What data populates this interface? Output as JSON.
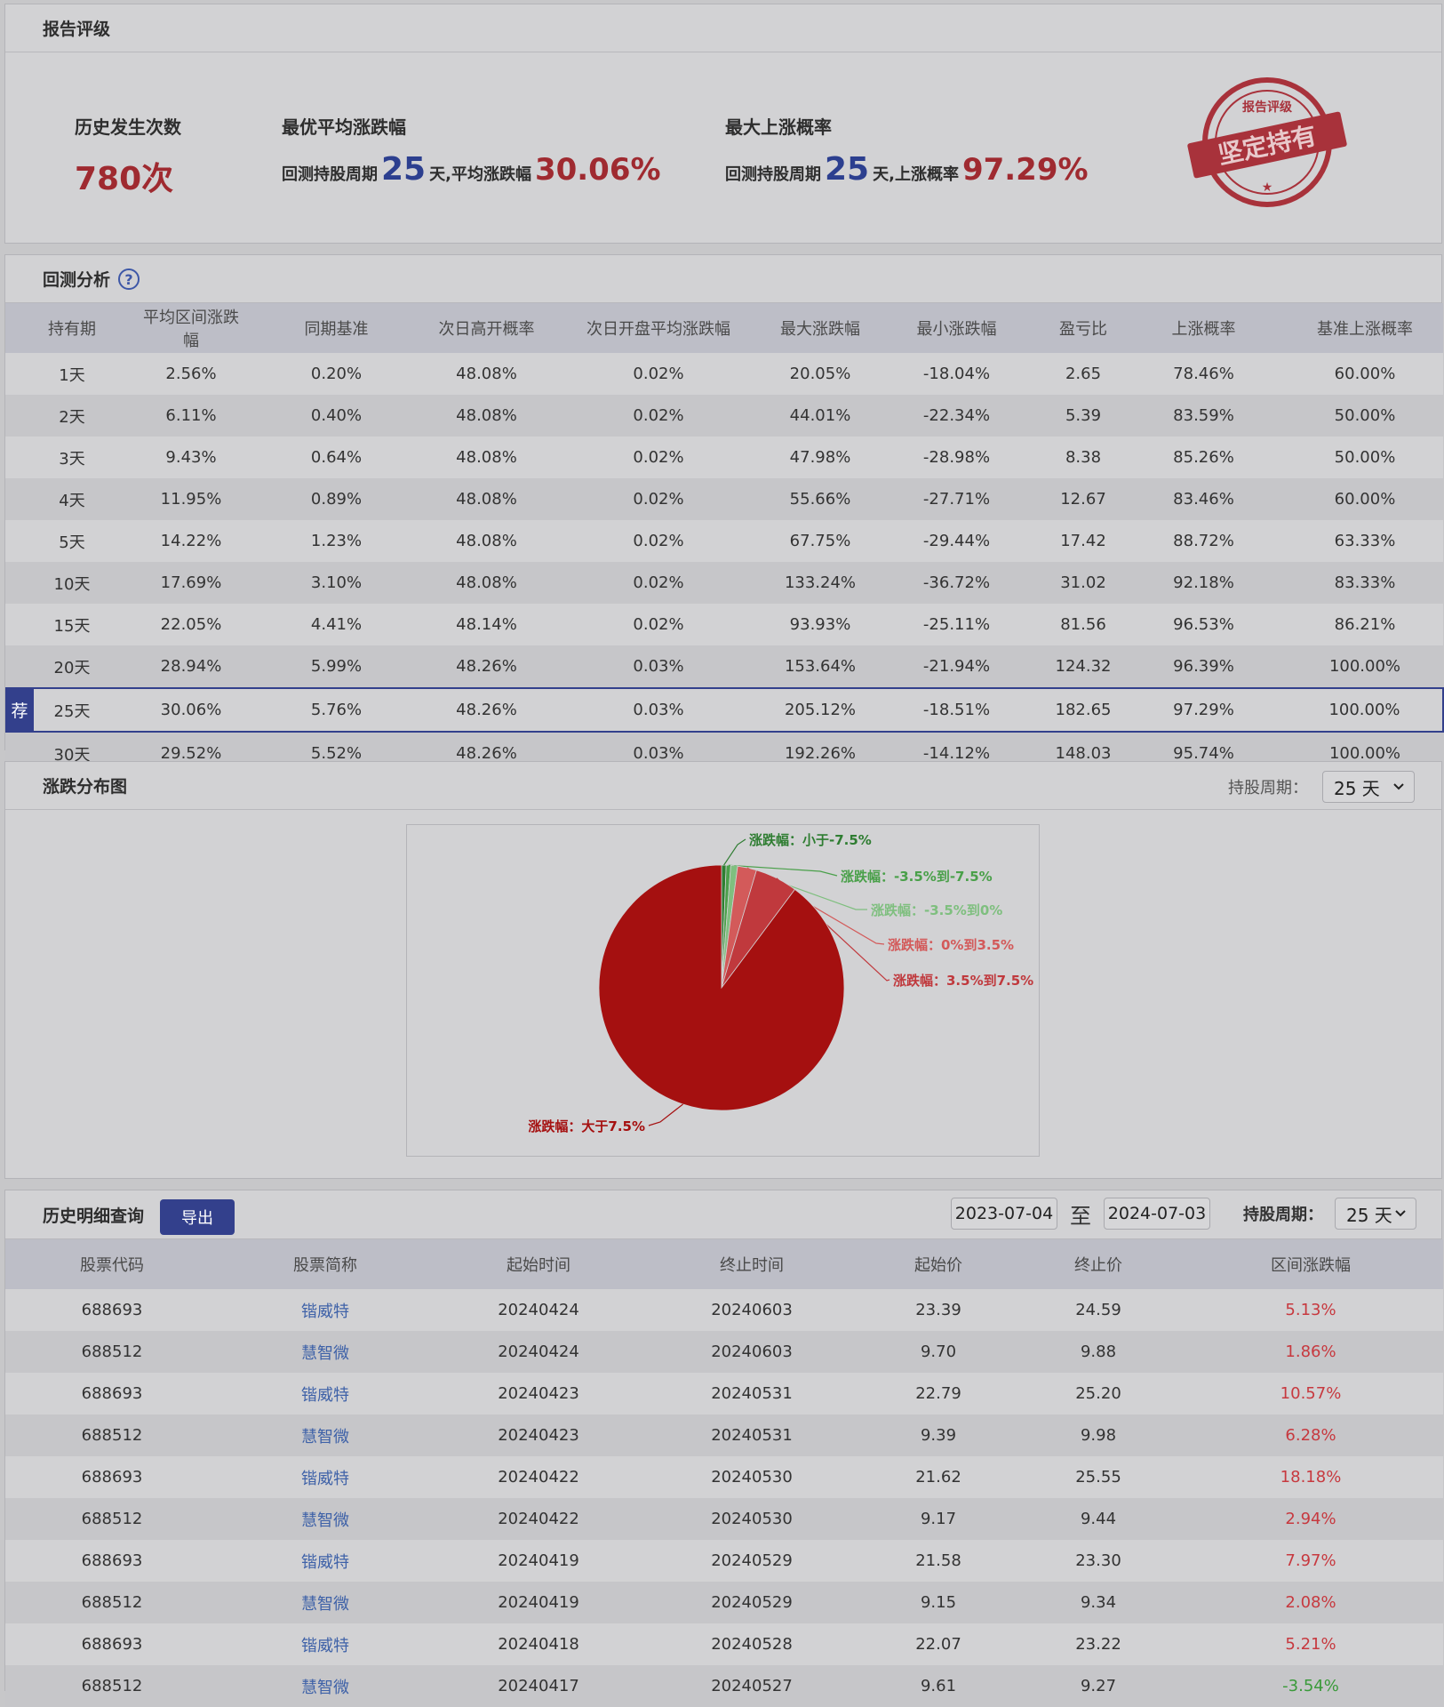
{
  "report": {
    "title": "报告评级",
    "count_label": "历史发生次数",
    "count_value": "780次",
    "best_avg_label": "最优平均涨跌幅",
    "best_avg_prefix": "回测持股周期",
    "best_avg_days": "25",
    "best_avg_mid": "天,平均涨跌幅",
    "best_avg_value": "30.06%",
    "max_up_label": "最大上涨概率",
    "max_up_prefix": "回测持股周期",
    "max_up_days": "25",
    "max_up_mid": "天,上涨概率",
    "max_up_value": "97.29%",
    "stamp_top": "报告评级",
    "stamp_text": "坚定持有"
  },
  "backtest": {
    "title": "回测分析",
    "help_icon": "question-circle-icon",
    "recommend_badge": "荐",
    "columns": [
      "持有期",
      "平均区间涨跌幅",
      "同期基准",
      "次日高开概率",
      "次日开盘平均涨跌幅",
      "最大涨跌幅",
      "最小涨跌幅",
      "盈亏比",
      "上涨概率",
      "基准上涨概率"
    ],
    "rows": [
      [
        "1天",
        "2.56%",
        "0.20%",
        "48.08%",
        "0.02%",
        "20.05%",
        "-18.04%",
        "2.65",
        "78.46%",
        "60.00%"
      ],
      [
        "2天",
        "6.11%",
        "0.40%",
        "48.08%",
        "0.02%",
        "44.01%",
        "-22.34%",
        "5.39",
        "83.59%",
        "50.00%"
      ],
      [
        "3天",
        "9.43%",
        "0.64%",
        "48.08%",
        "0.02%",
        "47.98%",
        "-28.98%",
        "8.38",
        "85.26%",
        "50.00%"
      ],
      [
        "4天",
        "11.95%",
        "0.89%",
        "48.08%",
        "0.02%",
        "55.66%",
        "-27.71%",
        "12.67",
        "83.46%",
        "60.00%"
      ],
      [
        "5天",
        "14.22%",
        "1.23%",
        "48.08%",
        "0.02%",
        "67.75%",
        "-29.44%",
        "17.42",
        "88.72%",
        "63.33%"
      ],
      [
        "10天",
        "17.69%",
        "3.10%",
        "48.08%",
        "0.02%",
        "133.24%",
        "-36.72%",
        "31.02",
        "92.18%",
        "83.33%"
      ],
      [
        "15天",
        "22.05%",
        "4.41%",
        "48.14%",
        "0.02%",
        "93.93%",
        "-25.11%",
        "81.56",
        "96.53%",
        "86.21%"
      ],
      [
        "20天",
        "28.94%",
        "5.99%",
        "48.26%",
        "0.03%",
        "153.64%",
        "-21.94%",
        "124.32",
        "96.39%",
        "100.00%"
      ],
      [
        "25天",
        "30.06%",
        "5.76%",
        "48.26%",
        "0.03%",
        "205.12%",
        "-18.51%",
        "182.65",
        "97.29%",
        "100.00%"
      ],
      [
        "30天",
        "29.52%",
        "5.52%",
        "48.26%",
        "0.03%",
        "192.26%",
        "-14.12%",
        "148.03",
        "95.74%",
        "100.00%"
      ]
    ],
    "recommended_index": 8
  },
  "distribution": {
    "title": "涨跌分布图",
    "period_label": "持股周期：",
    "period_value": "25 天",
    "chevron_icon": "chevron-down-icon"
  },
  "chart_data": {
    "type": "pie",
    "slices": [
      {
        "label": "涨跌幅：小于-7.5%",
        "value": 0.6,
        "color": "#2f7d32"
      },
      {
        "label": "涨跌幅：-3.5%到-7.5%",
        "value": 0.6,
        "color": "#4aa04a"
      },
      {
        "label": "涨跌幅：-3.5%到0%",
        "value": 0.9,
        "color": "#7fbf7f"
      },
      {
        "label": "涨跌幅：0%到3.5%",
        "value": 2.5,
        "color": "#d35a5a"
      },
      {
        "label": "涨跌幅：3.5%到7.5%",
        "value": 5.6,
        "color": "#c0393d"
      },
      {
        "label": "涨跌幅：大于7.5%",
        "value": 89.8,
        "color": "#a51010"
      }
    ]
  },
  "history": {
    "title": "历史明细查询",
    "export_label": "导出",
    "date_from": "2023-07-04",
    "date_sep": "至",
    "date_to": "2024-07-03",
    "period_label": "持股周期：",
    "period_value": "25 天",
    "columns": [
      "股票代码",
      "股票简称",
      "起始时间",
      "终止时间",
      "起始价",
      "终止价",
      "区间涨跌幅"
    ],
    "rows": [
      [
        "688693",
        "锴威特",
        "20240424",
        "20240603",
        "23.39",
        "24.59",
        "5.13%"
      ],
      [
        "688512",
        "慧智微",
        "20240424",
        "20240603",
        "9.70",
        "9.88",
        "1.86%"
      ],
      [
        "688693",
        "锴威特",
        "20240423",
        "20240531",
        "22.79",
        "25.20",
        "10.57%"
      ],
      [
        "688512",
        "慧智微",
        "20240423",
        "20240531",
        "9.39",
        "9.98",
        "6.28%"
      ],
      [
        "688693",
        "锴威特",
        "20240422",
        "20240530",
        "21.62",
        "25.55",
        "18.18%"
      ],
      [
        "688512",
        "慧智微",
        "20240422",
        "20240530",
        "9.17",
        "9.44",
        "2.94%"
      ],
      [
        "688693",
        "锴威特",
        "20240419",
        "20240529",
        "21.58",
        "23.30",
        "7.97%"
      ],
      [
        "688512",
        "慧智微",
        "20240419",
        "20240529",
        "9.15",
        "9.34",
        "2.08%"
      ],
      [
        "688693",
        "锴威特",
        "20240418",
        "20240528",
        "22.07",
        "23.22",
        "5.21%"
      ],
      [
        "688512",
        "慧智微",
        "20240417",
        "20240527",
        "9.61",
        "9.27",
        "-3.54%"
      ]
    ]
  }
}
